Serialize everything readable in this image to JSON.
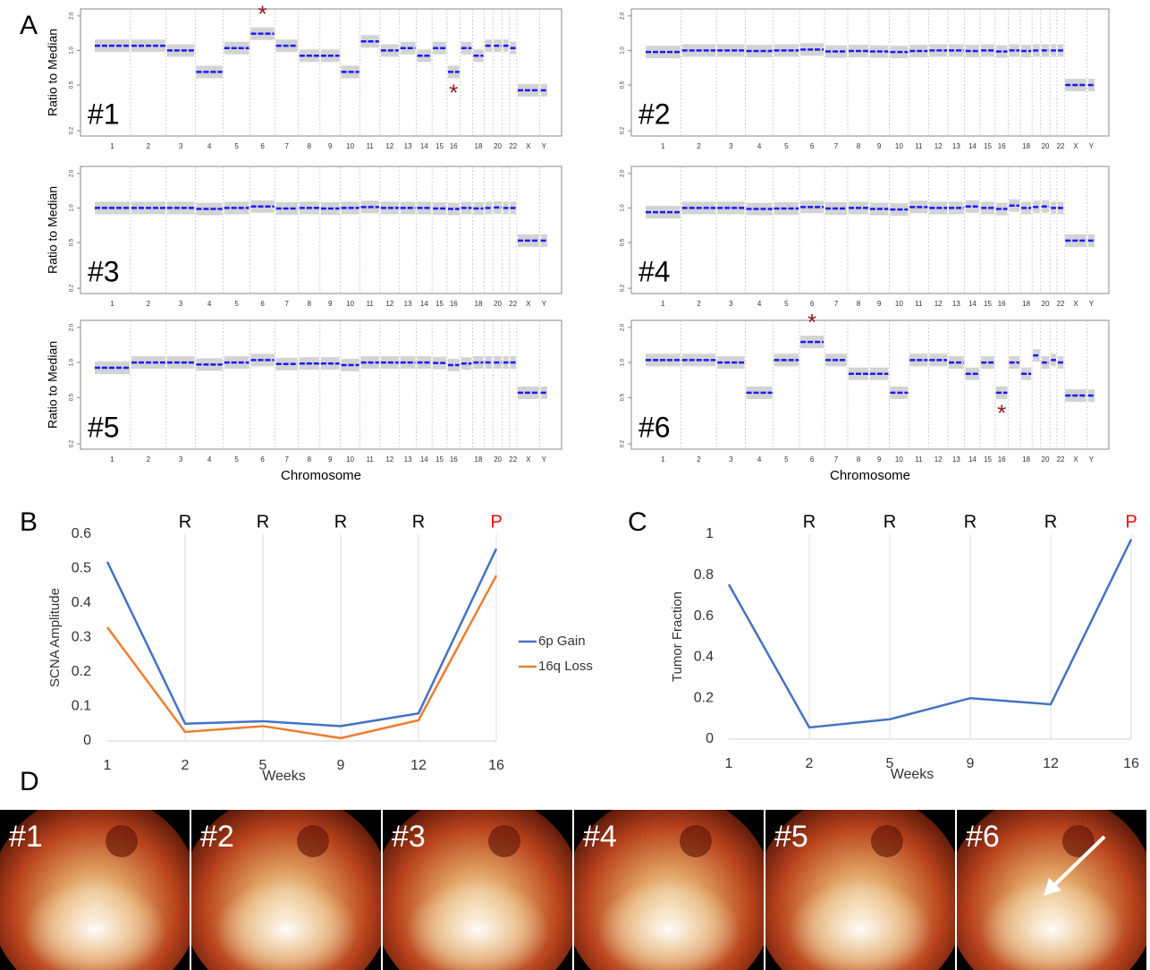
{
  "panel_labels": [
    "A",
    "B",
    "C",
    "D"
  ],
  "chart_data": [
    {
      "type": "cnv",
      "label": "#1",
      "ylabel": "Ratio to Median",
      "log_y": true,
      "ylim": [
        0.18,
        2.3
      ],
      "yticks": [
        0.2,
        0.5,
        {
          "value": 1,
          "label": "1.0"
        },
        {
          "value": 2,
          "label": "2.0"
        }
      ],
      "categories": [
        "1",
        "2",
        "3",
        "4",
        "5",
        "6",
        "7",
        "8",
        "9",
        "10",
        "11",
        "12",
        "13",
        "14",
        "15",
        "16",
        null,
        "18",
        null,
        "20",
        null,
        "22",
        "X",
        "Y"
      ],
      "values": [
        1.1,
        1.1,
        1.0,
        0.65,
        1.05,
        1.4,
        1.1,
        0.9,
        0.9,
        0.65,
        1.2,
        1.0,
        1.05,
        0.9,
        1.05,
        0.65,
        1.05,
        0.9,
        1.1,
        1.1,
        1.1,
        1.05,
        0.45,
        0.45
      ],
      "color": "#1a1aff",
      "annotations": [
        {
          "text": "*",
          "color": "#8b1a1a"
        },
        {
          "text": "*",
          "color": "#8b1a1a"
        }
      ]
    },
    {
      "type": "cnv",
      "label": "#2",
      "log_y": true,
      "ylim": [
        0.18,
        2.3
      ],
      "yticks": [
        0.2,
        0.5,
        {
          "value": 1,
          "label": "1.0"
        },
        {
          "value": 2,
          "label": "2.0"
        }
      ],
      "categories": [
        "1",
        "2",
        "3",
        "4",
        "5",
        "6",
        "7",
        "8",
        "9",
        "10",
        "11",
        "12",
        "13",
        "14",
        "15",
        "16",
        null,
        "18",
        null,
        "20",
        null,
        "22",
        "X",
        "Y"
      ],
      "values": [
        0.97,
        1.0,
        1.0,
        0.99,
        1.0,
        1.02,
        0.98,
        0.99,
        0.98,
        0.97,
        0.99,
        1.0,
        1.0,
        0.99,
        1.0,
        0.98,
        1.0,
        0.99,
        1.0,
        1.0,
        1.0,
        1.0,
        0.5,
        0.5
      ],
      "color": "#1a1aff"
    },
    {
      "type": "cnv",
      "label": "#3",
      "ylabel": "Ratio to Median",
      "log_y": true,
      "ylim": [
        0.18,
        2.3
      ],
      "yticks": [
        0.2,
        0.5,
        {
          "value": 1,
          "label": "1.0"
        },
        {
          "value": 2,
          "label": "2.0"
        }
      ],
      "categories": [
        "1",
        "2",
        "3",
        "4",
        "5",
        "6",
        "7",
        "8",
        "9",
        "10",
        "11",
        "12",
        "13",
        "14",
        "15",
        "16",
        null,
        "18",
        null,
        "20",
        null,
        "22",
        "X",
        "Y"
      ],
      "values": [
        1.0,
        1.0,
        1.0,
        0.98,
        1.0,
        1.03,
        0.99,
        1.0,
        0.99,
        1.0,
        1.02,
        1.0,
        1.0,
        1.0,
        0.99,
        0.98,
        1.0,
        0.99,
        1.0,
        1.01,
        1.0,
        1.0,
        0.52,
        0.52
      ],
      "color": "#1a1aff"
    },
    {
      "type": "cnv",
      "label": "#4",
      "log_y": true,
      "ylim": [
        0.18,
        2.3
      ],
      "yticks": [
        0.2,
        0.5,
        {
          "value": 1,
          "label": "1.0"
        },
        {
          "value": 2,
          "label": "2.0"
        }
      ],
      "categories": [
        "1",
        "2",
        "3",
        "4",
        "5",
        "6",
        "7",
        "8",
        "9",
        "10",
        "11",
        "12",
        "13",
        "14",
        "15",
        "16",
        null,
        "18",
        null,
        "20",
        null,
        "22",
        "X",
        "Y"
      ],
      "values": [
        0.92,
        1.0,
        1.0,
        0.98,
        0.99,
        1.02,
        0.99,
        1.0,
        0.98,
        0.97,
        1.02,
        1.0,
        1.0,
        1.03,
        1.0,
        0.98,
        1.05,
        1.0,
        1.02,
        1.03,
        1.0,
        1.0,
        0.52,
        0.52
      ],
      "color": "#1a1aff"
    },
    {
      "type": "cnv",
      "label": "#5",
      "ylabel": "Ratio to Median",
      "xlabel": "Chromosome",
      "log_y": true,
      "ylim": [
        0.18,
        2.3
      ],
      "yticks": [
        0.2,
        0.5,
        {
          "value": 1,
          "label": "1.0"
        },
        {
          "value": 2,
          "label": "2.0"
        }
      ],
      "categories": [
        "1",
        "2",
        "3",
        "4",
        "5",
        "6",
        "7",
        "8",
        "9",
        "10",
        "11",
        "12",
        "13",
        "14",
        "15",
        "16",
        null,
        "18",
        null,
        "20",
        null,
        "22",
        "X",
        "Y"
      ],
      "values": [
        0.9,
        1.0,
        1.0,
        0.96,
        1.0,
        1.05,
        0.97,
        0.98,
        0.98,
        0.95,
        1.0,
        1.0,
        1.0,
        1.0,
        0.99,
        0.95,
        0.98,
        1.0,
        1.0,
        1.0,
        1.0,
        1.0,
        0.55,
        0.55
      ],
      "color": "#1a1aff"
    },
    {
      "type": "cnv",
      "label": "#6",
      "xlabel": "Chromosome",
      "log_y": true,
      "ylim": [
        0.18,
        2.3
      ],
      "yticks": [
        0.2,
        0.5,
        {
          "value": 1,
          "label": "1.0"
        },
        {
          "value": 2,
          "label": "2.0"
        }
      ],
      "categories": [
        "1",
        "2",
        "3",
        "4",
        "5",
        "6",
        "7",
        "8",
        "9",
        "10",
        "11",
        "12",
        "13",
        "14",
        "15",
        "16",
        null,
        "18",
        null,
        "20",
        null,
        "22",
        "X",
        "Y"
      ],
      "values": [
        1.05,
        1.05,
        1.0,
        0.55,
        1.05,
        1.5,
        1.05,
        0.8,
        0.8,
        0.55,
        1.05,
        1.05,
        1.0,
        0.8,
        1.0,
        0.55,
        1.0,
        0.8,
        1.15,
        1.0,
        1.05,
        1.0,
        0.52,
        0.52
      ],
      "color": "#1a1aff",
      "annotations": [
        {
          "text": "*",
          "color": "#8b1a1a"
        },
        {
          "text": "*",
          "color": "#8b1a1a"
        }
      ]
    },
    {
      "type": "line",
      "ylabel": "SCNA Amplitude",
      "xlabel": "Weeks",
      "categories": [
        "1",
        "2",
        "5",
        "9",
        "12",
        "16"
      ],
      "ylim": [
        0,
        0.6
      ],
      "yticks": [
        0,
        0.1,
        0.2,
        0.3,
        0.4,
        0.5,
        0.6
      ],
      "grid": true,
      "annotations": [
        {
          "text": "R",
          "color": "#000000"
        },
        {
          "text": "R",
          "color": "#000000"
        },
        {
          "text": "R",
          "color": "#000000"
        },
        {
          "text": "R",
          "color": "#000000"
        },
        {
          "text": "P",
          "color": "#ff0000"
        }
      ],
      "series": [
        {
          "name": "6p Gain",
          "color": "#4472c4",
          "values": [
            0.52,
            0.05,
            0.057,
            0.043,
            0.08,
            0.558
          ]
        },
        {
          "name": "16q Loss",
          "color": "#ed7d31",
          "values": [
            0.33,
            0.026,
            0.043,
            0.008,
            0.06,
            0.48
          ]
        }
      ],
      "legend": "right"
    },
    {
      "type": "line",
      "ylabel": "Tumor Fraction",
      "xlabel": "Weeks",
      "categories": [
        "1",
        "2",
        "5",
        "9",
        "12",
        "16"
      ],
      "ylim": [
        0,
        1
      ],
      "yticks": [
        0,
        0.2,
        0.4,
        0.6,
        0.8,
        1
      ],
      "grid": true,
      "annotations": [
        {
          "text": "R",
          "color": "#000000"
        },
        {
          "text": "R",
          "color": "#000000"
        },
        {
          "text": "R",
          "color": "#000000"
        },
        {
          "text": "R",
          "color": "#000000"
        },
        {
          "text": "P",
          "color": "#ff0000"
        }
      ],
      "series": [
        {
          "color": "#4472c4",
          "values": [
            0.755,
            0.057,
            0.097,
            0.2,
            0.17,
            0.975
          ]
        }
      ]
    }
  ],
  "photos": [
    {
      "label": "#1"
    },
    {
      "label": "#2"
    },
    {
      "label": "#3"
    },
    {
      "label": "#4"
    },
    {
      "label": "#5"
    },
    {
      "label": "#6"
    }
  ]
}
